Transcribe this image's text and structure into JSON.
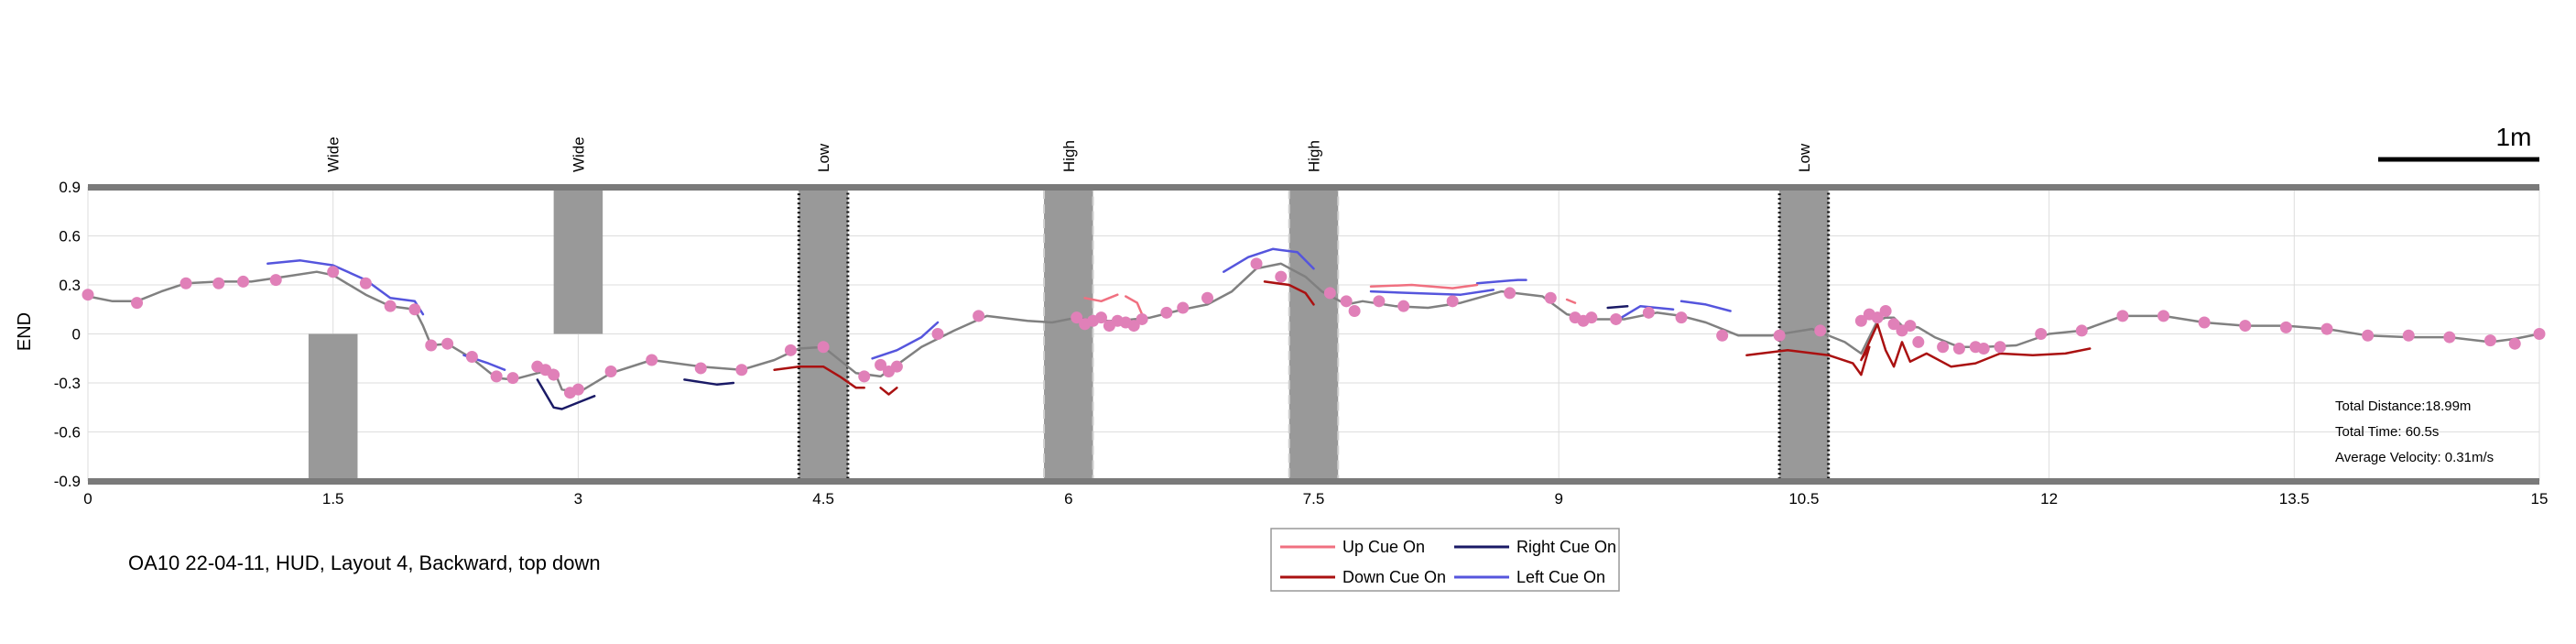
{
  "chart_data": {
    "type": "line",
    "title": "",
    "xlabel": "",
    "ylabel": "END",
    "xlim": [
      0,
      15
    ],
    "ylim": [
      -0.9,
      0.9
    ],
    "x_ticks": [
      "0",
      "1.5",
      "3",
      "4.5",
      "6",
      "7.5",
      "9",
      "10.5",
      "12",
      "13.5",
      "15"
    ],
    "y_ticks": [
      "0.9",
      "0.6",
      "0.3",
      "0",
      "-0.3",
      "-0.6",
      "-0.9"
    ],
    "grid": true,
    "caption": "OA10 22-04-11, HUD, Layout 4, Backward, top down",
    "scale_bar": {
      "label": "1m",
      "length": 1
    },
    "stats": {
      "total_distance": "Total Distance:18.99m",
      "total_time": "Total Time: 60.5s",
      "average_velocity": "Average Velocity: 0.31m/s"
    },
    "obstacles": [
      {
        "label": "Wide",
        "x0": 1.35,
        "x1": 1.65,
        "y0": -0.9,
        "y1": 0.0,
        "style": "solid"
      },
      {
        "label": "Wide",
        "x0": 2.85,
        "x1": 3.15,
        "y0": 0.0,
        "y1": 0.9,
        "style": "solid"
      },
      {
        "label": "Low",
        "x0": 4.35,
        "x1": 4.65,
        "y0": -0.9,
        "y1": 0.9,
        "style": "dotted"
      },
      {
        "label": "High",
        "x0": 5.85,
        "x1": 6.15,
        "y0": -0.9,
        "y1": 0.9,
        "style": "dashed"
      },
      {
        "label": "High",
        "x0": 7.35,
        "x1": 7.65,
        "y0": -0.9,
        "y1": 0.9,
        "style": "dashed"
      },
      {
        "label": "Low",
        "x0": 10.35,
        "x1": 10.65,
        "y0": -0.9,
        "y1": 0.9,
        "style": "dotted"
      }
    ],
    "legend": [
      {
        "label": "Up Cue On",
        "color": "#f07080"
      },
      {
        "label": "Right Cue On",
        "color": "#1a1a66"
      },
      {
        "label": "Down Cue On",
        "color": "#aa1111"
      },
      {
        "label": "Left Cue On",
        "color": "#5555dd"
      }
    ],
    "series": [
      {
        "kind": "path",
        "color": "#808080",
        "x": [
          0,
          0.15,
          0.3,
          0.45,
          0.6,
          0.8,
          1.0,
          1.2,
          1.4,
          1.5,
          1.6,
          1.7,
          1.85,
          2.0,
          2.05,
          2.1,
          2.2,
          2.35,
          2.5,
          2.6,
          2.75,
          2.85,
          2.9,
          3.0,
          3.2,
          3.45,
          3.75,
          4.0,
          4.2,
          4.35,
          4.5,
          4.7,
          4.85,
          4.95,
          5.1,
          5.3,
          5.5,
          5.75,
          5.9,
          6.05,
          6.15,
          6.3,
          6.5,
          6.7,
          6.85,
          7.0,
          7.15,
          7.3,
          7.45,
          7.55,
          7.7,
          7.8,
          8.0,
          8.2,
          8.4,
          8.65,
          8.9,
          9.05,
          9.2,
          9.4,
          9.6,
          9.75,
          9.9,
          10.1,
          10.3,
          10.55,
          10.75,
          10.85,
          10.95,
          11.0,
          11.05,
          11.1,
          11.2,
          11.3,
          11.45,
          11.6,
          11.8,
          12.0,
          12.2,
          12.45,
          12.7,
          12.95,
          13.2,
          13.45,
          13.7,
          13.95,
          14.2,
          14.45,
          14.7,
          14.85,
          15.0
        ],
        "y": [
          0.23,
          0.2,
          0.2,
          0.26,
          0.31,
          0.32,
          0.32,
          0.35,
          0.38,
          0.36,
          0.3,
          0.24,
          0.17,
          0.15,
          0.05,
          -0.07,
          -0.06,
          -0.15,
          -0.27,
          -0.28,
          -0.24,
          -0.22,
          -0.34,
          -0.36,
          -0.24,
          -0.16,
          -0.2,
          -0.22,
          -0.16,
          -0.09,
          -0.08,
          -0.24,
          -0.26,
          -0.19,
          -0.08,
          0.02,
          0.11,
          0.08,
          0.07,
          0.1,
          0.08,
          0.08,
          0.1,
          0.15,
          0.18,
          0.26,
          0.4,
          0.43,
          0.35,
          0.26,
          0.18,
          0.2,
          0.17,
          0.16,
          0.19,
          0.26,
          0.23,
          0.12,
          0.09,
          0.09,
          0.13,
          0.11,
          0.07,
          -0.01,
          -0.01,
          0.03,
          -0.05,
          -0.12,
          0.08,
          0.1,
          0.1,
          0.05,
          0.04,
          -0.02,
          -0.08,
          -0.08,
          -0.07,
          0.0,
          0.02,
          0.11,
          0.11,
          0.07,
          0.05,
          0.05,
          0.03,
          -0.01,
          -0.02,
          -0.02,
          -0.05,
          -0.03,
          0.0
        ]
      },
      {
        "kind": "points",
        "color": "#e080b8",
        "x": [
          0,
          0.3,
          0.6,
          0.8,
          0.95,
          1.15,
          1.5,
          1.7,
          1.85,
          2.0,
          2.1,
          2.2,
          2.35,
          2.5,
          2.6,
          2.75,
          2.8,
          2.85,
          2.95,
          3.0,
          3.2,
          3.45,
          3.75,
          4.0,
          4.3,
          4.5,
          4.75,
          4.85,
          4.9,
          4.95,
          5.2,
          5.45,
          6.05,
          6.1,
          6.15,
          6.2,
          6.25,
          6.3,
          6.35,
          6.4,
          6.45,
          6.6,
          6.7,
          6.85,
          7.15,
          7.3,
          7.6,
          7.7,
          7.75,
          7.9,
          8.05,
          8.35,
          8.7,
          8.95,
          9.1,
          9.15,
          9.2,
          9.35,
          9.55,
          9.75,
          10.0,
          10.35,
          10.6,
          10.85,
          10.9,
          10.95,
          11.0,
          11.05,
          11.1,
          11.15,
          11.2,
          11.35,
          11.45,
          11.55,
          11.6,
          11.7,
          11.95,
          12.2,
          12.45,
          12.7,
          12.95,
          13.2,
          13.45,
          13.7,
          13.95,
          14.2,
          14.45,
          14.7,
          14.85,
          15.0
        ],
        "y": [
          0.24,
          0.19,
          0.31,
          0.31,
          0.32,
          0.33,
          0.38,
          0.31,
          0.17,
          0.15,
          -0.07,
          -0.06,
          -0.14,
          -0.26,
          -0.27,
          -0.2,
          -0.22,
          -0.25,
          -0.36,
          -0.34,
          -0.23,
          -0.16,
          -0.21,
          -0.22,
          -0.1,
          -0.08,
          -0.26,
          -0.19,
          -0.23,
          -0.2,
          0.0,
          0.11,
          0.1,
          0.06,
          0.08,
          0.1,
          0.05,
          0.08,
          0.07,
          0.05,
          0.09,
          0.13,
          0.16,
          0.22,
          0.43,
          0.35,
          0.25,
          0.2,
          0.14,
          0.2,
          0.17,
          0.2,
          0.25,
          0.22,
          0.1,
          0.08,
          0.1,
          0.09,
          0.13,
          0.1,
          -0.01,
          -0.01,
          0.02,
          0.08,
          0.12,
          0.1,
          0.14,
          0.06,
          0.02,
          0.05,
          -0.05,
          -0.08,
          -0.09,
          -0.08,
          -0.09,
          -0.08,
          0.0,
          0.02,
          0.11,
          0.11,
          0.07,
          0.05,
          0.04,
          0.03,
          -0.01,
          -0.01,
          -0.02,
          -0.04,
          -0.06,
          0.0
        ]
      },
      {
        "kind": "cue",
        "cue": "left",
        "color": "#5555dd",
        "x": [
          1.1,
          1.3,
          1.5,
          1.7,
          1.85,
          2.0,
          2.05
        ],
        "y": [
          0.43,
          0.45,
          0.42,
          0.33,
          0.22,
          0.2,
          0.12
        ]
      },
      {
        "kind": "cue",
        "cue": "left",
        "color": "#5555dd",
        "x": [
          2.3,
          2.45,
          2.55
        ],
        "y": [
          -0.13,
          -0.18,
          -0.22
        ]
      },
      {
        "kind": "cue",
        "cue": "left",
        "color": "#5555dd",
        "x": [
          4.8,
          4.95,
          5.1,
          5.2
        ],
        "y": [
          -0.15,
          -0.1,
          -0.02,
          0.07
        ]
      },
      {
        "kind": "cue",
        "cue": "left",
        "color": "#5555dd",
        "x": [
          6.95,
          7.1,
          7.25,
          7.4,
          7.5
        ],
        "y": [
          0.38,
          0.47,
          0.52,
          0.5,
          0.4
        ]
      },
      {
        "kind": "cue",
        "cue": "left",
        "color": "#5555dd",
        "x": [
          7.85,
          8.1,
          8.4,
          8.6
        ],
        "y": [
          0.26,
          0.25,
          0.24,
          0.27
        ]
      },
      {
        "kind": "cue",
        "cue": "left",
        "color": "#5555dd",
        "x": [
          8.5,
          8.75,
          8.8
        ],
        "y": [
          0.31,
          0.33,
          0.33
        ]
      },
      {
        "kind": "cue",
        "cue": "left",
        "color": "#5555dd",
        "x": [
          9.35,
          9.5,
          9.7
        ],
        "y": [
          0.08,
          0.17,
          0.15
        ]
      },
      {
        "kind": "cue",
        "cue": "left",
        "color": "#5555dd",
        "x": [
          9.75,
          9.9,
          10.05
        ],
        "y": [
          0.2,
          0.18,
          0.14
        ]
      },
      {
        "kind": "cue",
        "cue": "up",
        "color": "#f07080",
        "x": [
          7.85,
          8.1,
          8.35,
          8.5
        ],
        "y": [
          0.29,
          0.3,
          0.28,
          0.3
        ]
      },
      {
        "kind": "cue",
        "cue": "up",
        "color": "#f07080",
        "x": [
          6.1,
          6.2,
          6.3
        ],
        "y": [
          0.22,
          0.2,
          0.24
        ]
      },
      {
        "kind": "cue",
        "cue": "up",
        "color": "#f07080",
        "x": [
          6.35,
          6.42,
          6.45
        ],
        "y": [
          0.23,
          0.19,
          0.12
        ]
      },
      {
        "kind": "cue",
        "cue": "up",
        "color": "#f07080",
        "x": [
          9.05,
          9.1
        ],
        "y": [
          0.21,
          0.19
        ]
      },
      {
        "kind": "cue",
        "cue": "right",
        "color": "#1a1a66",
        "x": [
          2.75,
          2.85,
          2.9,
          3.0,
          3.1
        ],
        "y": [
          -0.28,
          -0.45,
          -0.46,
          -0.42,
          -0.38
        ]
      },
      {
        "kind": "cue",
        "cue": "right",
        "color": "#1a1a66",
        "x": [
          3.65,
          3.85,
          3.95
        ],
        "y": [
          -0.28,
          -0.31,
          -0.3
        ]
      },
      {
        "kind": "cue",
        "cue": "right",
        "color": "#1a1a66",
        "x": [
          9.3,
          9.42
        ],
        "y": [
          0.16,
          0.17
        ]
      },
      {
        "kind": "cue",
        "cue": "down",
        "color": "#aa1111",
        "x": [
          4.2,
          4.35,
          4.5,
          4.6,
          4.7,
          4.75
        ],
        "y": [
          -0.22,
          -0.2,
          -0.2,
          -0.26,
          -0.33,
          -0.33
        ]
      },
      {
        "kind": "cue",
        "cue": "down",
        "color": "#aa1111",
        "x": [
          4.85,
          4.9,
          4.95
        ],
        "y": [
          -0.33,
          -0.37,
          -0.33
        ]
      },
      {
        "kind": "cue",
        "cue": "down",
        "color": "#aa1111",
        "x": [
          7.2,
          7.35,
          7.45,
          7.5
        ],
        "y": [
          0.32,
          0.3,
          0.25,
          0.18
        ]
      },
      {
        "kind": "cue",
        "cue": "down",
        "color": "#aa1111",
        "x": [
          10.15,
          10.4,
          10.65,
          10.8,
          10.85,
          10.9,
          10.85,
          10.95,
          11.0,
          11.05,
          11.1,
          11.15,
          11.25,
          11.4,
          11.55,
          11.7,
          11.9,
          12.1,
          12.25
        ],
        "y": [
          -0.13,
          -0.1,
          -0.13,
          -0.18,
          -0.25,
          -0.08,
          -0.16,
          0.06,
          -0.1,
          -0.2,
          -0.05,
          -0.17,
          -0.12,
          -0.2,
          -0.18,
          -0.12,
          -0.13,
          -0.12,
          -0.09
        ]
      }
    ]
  }
}
